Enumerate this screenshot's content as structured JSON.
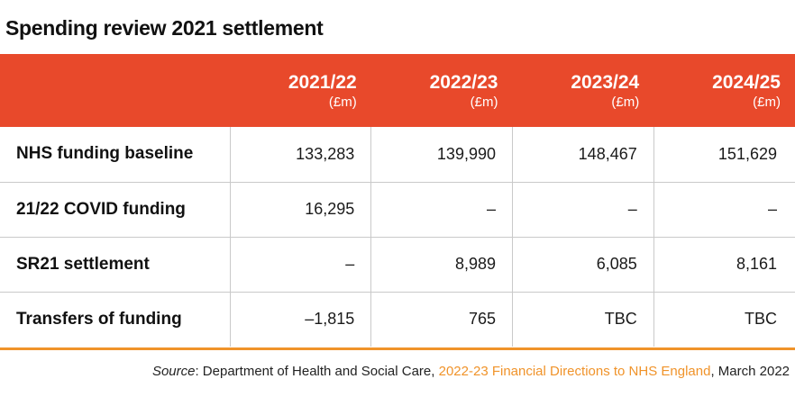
{
  "title": "Spending review 2021 settlement",
  "table": {
    "columns": [
      {
        "year": "2021/22",
        "unit": "(£m)"
      },
      {
        "year": "2022/23",
        "unit": "(£m)"
      },
      {
        "year": "2023/24",
        "unit": "(£m)"
      },
      {
        "year": "2024/25",
        "unit": "(£m)"
      }
    ],
    "rows": [
      {
        "label": "NHS funding baseline",
        "values": [
          "133,283",
          "139,990",
          "148,467",
          "151,629"
        ]
      },
      {
        "label": "21/22 COVID funding",
        "values": [
          "16,295",
          "–",
          "–",
          "–"
        ]
      },
      {
        "label": "SR21 settlement",
        "values": [
          "–",
          "8,989",
          "6,085",
          "8,161"
        ]
      },
      {
        "label": "Transfers of funding",
        "values": [
          "–1,815",
          "765",
          "TBC",
          "TBC"
        ]
      }
    ]
  },
  "source": {
    "label": "Source",
    "prefix": ": Department of Health and Social Care, ",
    "link_text": "2022-23 Financial Directions to NHS England",
    "suffix": ", March 2022"
  },
  "colors": {
    "header_bg": "#e8492b",
    "accent_orange": "#f0932a",
    "gridline": "#c9c9c9"
  }
}
